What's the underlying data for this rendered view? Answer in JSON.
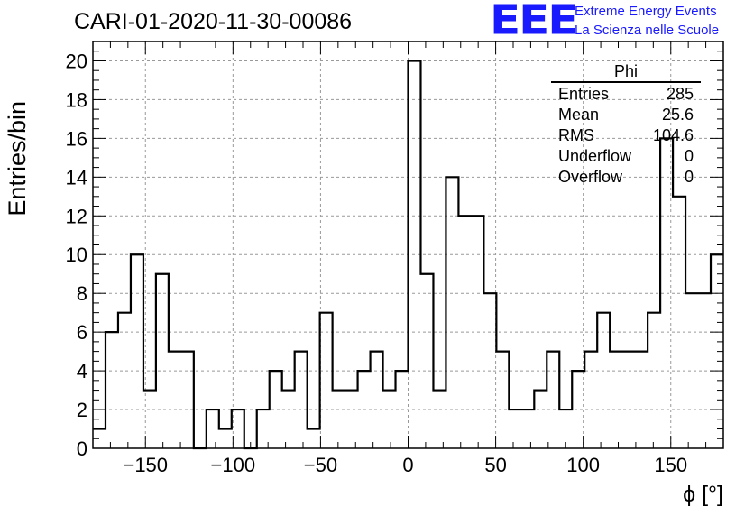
{
  "header": {
    "title": "CARI-01-2020-11-30-00086",
    "logo_text": "EEE",
    "org_line1": "Extreme Energy Events",
    "org_line2": "La Scienza nelle Scuole"
  },
  "stats_box": {
    "title": "Phi",
    "rows": [
      {
        "label": "Entries",
        "value": "285"
      },
      {
        "label": "Mean",
        "value": "25.6"
      },
      {
        "label": "RMS",
        "value": "104.6"
      },
      {
        "label": "Underflow",
        "value": "0"
      },
      {
        "label": "Overflow",
        "value": "0"
      }
    ]
  },
  "chart_data": {
    "type": "bar",
    "histogram": true,
    "title": "CARI-01-2020-11-30-00086",
    "xlabel": "ϕ [°]",
    "ylabel": "Entries/bin",
    "xlim": [
      -180,
      180
    ],
    "ylim": [
      0,
      21
    ],
    "bin_width": 7.2,
    "x_ticks": [
      -150,
      -100,
      -50,
      0,
      50,
      100,
      150
    ],
    "x_tick_labels": [
      "−150",
      "−100",
      "−50",
      "0",
      "50",
      "100",
      "150"
    ],
    "y_ticks": [
      0,
      2,
      4,
      6,
      8,
      10,
      12,
      14,
      16,
      18,
      20
    ],
    "y_tick_labels": [
      "0",
      "2",
      "4",
      "6",
      "8",
      "10",
      "12",
      "14",
      "16",
      "18",
      "20"
    ],
    "grid": true,
    "values": [
      1,
      6,
      7,
      10,
      3,
      9,
      5,
      5,
      0,
      2,
      1,
      2,
      0,
      2,
      4,
      3,
      5,
      1,
      7,
      3,
      3,
      4,
      5,
      3,
      4,
      20,
      9,
      3,
      14,
      12,
      12,
      8,
      5,
      2,
      2,
      3,
      5,
      2,
      4,
      5,
      7,
      5,
      5,
      5,
      7,
      16,
      13,
      8,
      8,
      10
    ],
    "colors": {
      "line": "#000000",
      "grid": "#999999",
      "accent": "#1a1aff"
    }
  }
}
